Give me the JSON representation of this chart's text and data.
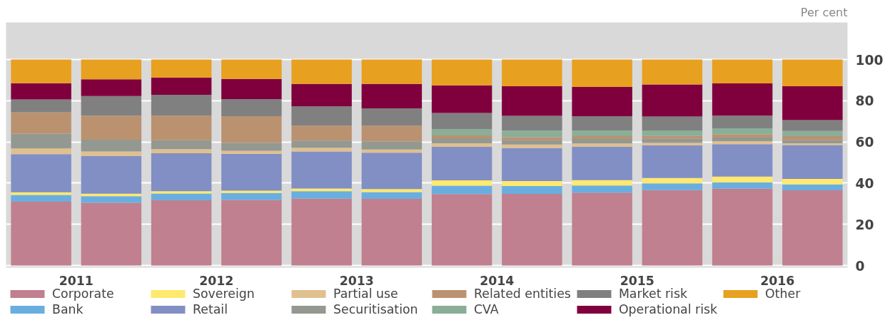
{
  "chart_data": {
    "type": "bar",
    "stacked": true,
    "ylabel": "Per cent",
    "x": [
      2010.75,
      2011.25,
      2011.75,
      2012.25,
      2012.75,
      2013.25,
      2013.75,
      2014.25,
      2014.75,
      2015.25,
      2015.75,
      2016.25
    ],
    "xlim": [
      2010.5,
      2016.5
    ],
    "xticks": [
      2011,
      2012,
      2013,
      2014,
      2015,
      2016
    ],
    "ylim": [
      -1,
      118
    ],
    "yticks": [
      0,
      20,
      40,
      60,
      80,
      100
    ],
    "grid": "y",
    "legend": "bottom",
    "series": [
      {
        "name": "Corporate",
        "color": "#c0808f",
        "values": [
          31.0,
          30.5,
          31.7,
          31.9,
          32.5,
          32.4,
          34.7,
          34.8,
          35.4,
          36.6,
          37.3,
          36.5
        ]
      },
      {
        "name": "Bank",
        "color": "#6aaee0",
        "values": [
          3.3,
          3.2,
          3.3,
          3.3,
          3.6,
          3.3,
          4.1,
          3.8,
          3.5,
          3.3,
          3.0,
          2.9
        ]
      },
      {
        "name": "Sovereign",
        "color": "#ffe96e",
        "values": [
          1.3,
          1.2,
          1.1,
          1.2,
          1.3,
          1.4,
          2.6,
          2.4,
          2.6,
          2.6,
          2.9,
          2.7
        ]
      },
      {
        "name": "Retail",
        "color": "#828fc4",
        "values": [
          18.5,
          18.3,
          18.4,
          17.8,
          18.0,
          17.7,
          16.2,
          16.0,
          16.2,
          15.8,
          15.7,
          16.4
        ]
      },
      {
        "name": "Partial use",
        "color": "#e0c08f",
        "values": [
          2.8,
          2.2,
          2.0,
          1.5,
          1.8,
          1.5,
          1.8,
          1.8,
          1.6,
          1.2,
          1.4,
          0.9
        ]
      },
      {
        "name": "Securitisation",
        "color": "#939891",
        "values": [
          7.1,
          5.7,
          4.3,
          3.9,
          3.5,
          4.0,
          2.4,
          2.0,
          2.1,
          2.0,
          1.8,
          1.6
        ]
      },
      {
        "name": "Related entities",
        "color": "#bb9270",
        "values": [
          10.4,
          11.7,
          12.0,
          12.9,
          7.2,
          7.6,
          1.4,
          1.5,
          1.4,
          1.4,
          1.6,
          1.8
        ]
      },
      {
        "name": "CVA",
        "color": "#8aae98",
        "values": [
          null,
          null,
          null,
          null,
          null,
          null,
          3.1,
          3.2,
          2.7,
          2.7,
          2.9,
          2.5
        ]
      },
      {
        "name": "Market risk",
        "color": "#808080",
        "values": [
          6.2,
          9.5,
          10.1,
          8.3,
          9.4,
          8.4,
          7.8,
          7.2,
          7.0,
          6.7,
          6.2,
          5.3
        ]
      },
      {
        "name": "Operational risk",
        "color": "#80003d",
        "values": [
          7.9,
          8.1,
          8.4,
          9.8,
          10.9,
          11.9,
          13.4,
          14.3,
          14.2,
          15.6,
          15.6,
          16.4
        ]
      },
      {
        "name": "Other",
        "color": "#e8a020",
        "values": [
          11.5,
          9.6,
          8.7,
          9.4,
          11.8,
          11.8,
          12.5,
          13.0,
          13.3,
          12.1,
          11.6,
          13.0
        ]
      }
    ]
  }
}
